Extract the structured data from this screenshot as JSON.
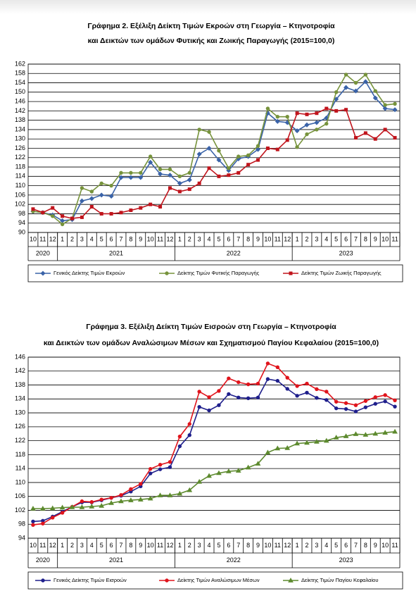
{
  "chart_data": [
    {
      "type": "line",
      "title": "Γράφημα 2. Εξέλιξη Δείκτη Τιμών Εκροών στη Γεωργία – Κτηνοτροφία",
      "subtitle": "και Δεικτών των ομάδων Φυτικής και Ζωικής Παραγωγής (2015=100,0)",
      "categories": [
        "10",
        "11",
        "12",
        "1",
        "2",
        "3",
        "4",
        "5",
        "6",
        "7",
        "8",
        "9",
        "10",
        "11",
        "12",
        "1",
        "2",
        "3",
        "4",
        "5",
        "6",
        "7",
        "8",
        "9",
        "10",
        "11",
        "12",
        "1",
        "2",
        "3",
        "4",
        "5",
        "6",
        "7",
        "8",
        "9",
        "10",
        "11"
      ],
      "groups": [
        "2020",
        "2021",
        "2022",
        "2023"
      ],
      "ylim": [
        90,
        162
      ],
      "yticks": [
        90,
        94,
        98,
        102,
        106,
        110,
        114,
        118,
        122,
        126,
        130,
        134,
        138,
        142,
        146,
        150,
        154,
        158,
        162
      ],
      "grid": true,
      "series": [
        {
          "name": "Γενικός Δείκτης Τιμών Εκροών",
          "color": "#3a63a8",
          "marker": "diamond",
          "values": [
            99,
            98.5,
            97.5,
            95,
            95.5,
            103.5,
            104.5,
            106,
            105.5,
            113.5,
            113.5,
            113.5,
            120,
            115,
            114.5,
            111,
            112.5,
            123.5,
            126,
            121,
            116.5,
            121.5,
            122.5,
            125.5,
            141,
            137.5,
            137,
            133.5,
            136,
            137,
            139,
            147,
            152,
            150.5,
            154.5,
            147.5,
            143,
            142.5
          ]
        },
        {
          "name": "Δείκτης Τιμών Φυτικής Παραγωγής",
          "color": "#77933c",
          "marker": "circle",
          "values": [
            99,
            98.5,
            97,
            93.5,
            96,
            109,
            107.5,
            111,
            110,
            115.5,
            115.5,
            115.5,
            122.5,
            117,
            117,
            114,
            115.5,
            134,
            133,
            125,
            117.5,
            122.5,
            123,
            127,
            143,
            139.5,
            139.5,
            126.5,
            132,
            134,
            136.5,
            150,
            157.5,
            154,
            157.5,
            150.5,
            144.5,
            145
          ]
        },
        {
          "name": "Δείκτης Τιμών Ζωικής Παραγωγής",
          "color": "#c0141c",
          "marker": "square",
          "values": [
            100,
            98.5,
            100.5,
            97,
            96,
            96.5,
            101,
            98,
            98,
            98.5,
            99.5,
            100.5,
            102,
            101,
            109,
            107.5,
            108.5,
            111,
            117.5,
            114,
            114.5,
            115.5,
            119,
            121,
            126,
            125.5,
            129.5,
            141,
            140.5,
            141,
            143,
            142,
            142.5,
            130.5,
            132.5,
            130,
            134,
            130.5
          ]
        }
      ]
    },
    {
      "type": "line",
      "title": "Γράφημα 3. Εξέλιξη Δείκτη Τιμών Εισροών στη Γεωργία – Κτηνοτροφία",
      "subtitle": "και Δεικτών των ομάδων Αναλώσιμων Μέσων και Σχηματισμού Παγίου Κεφαλαίου (2015=100,0)",
      "categories": [
        "10",
        "11",
        "12",
        "1",
        "2",
        "3",
        "4",
        "5",
        "6",
        "7",
        "8",
        "9",
        "10",
        "11",
        "12",
        "1",
        "2",
        "3",
        "4",
        "5",
        "6",
        "7",
        "8",
        "9",
        "10",
        "11",
        "12",
        "1",
        "2",
        "3",
        "4",
        "5",
        "6",
        "7",
        "8",
        "9",
        "10",
        "11"
      ],
      "groups": [
        "2020",
        "2021",
        "2022",
        "2023"
      ],
      "ylim": [
        94,
        146
      ],
      "yticks": [
        94,
        98,
        102,
        106,
        110,
        114,
        118,
        122,
        126,
        130,
        134,
        138,
        142,
        146
      ],
      "grid": true,
      "series": [
        {
          "name": "Γενικός Δείκτης Τιμών Εισροών",
          "color": "#1f1f8c",
          "marker": "circle",
          "values": [
            98.8,
            99,
            100.2,
            101.6,
            103,
            104.3,
            104.3,
            104.9,
            105.6,
            106.2,
            107.4,
            108.9,
            112.6,
            113.8,
            114.4,
            120.4,
            123.6,
            131.7,
            130.7,
            132.2,
            135.4,
            134.4,
            134.2,
            134.4,
            139.7,
            139.2,
            136.9,
            134.9,
            135.8,
            134.3,
            133.7,
            131.3,
            131.1,
            130.4,
            131.6,
            132.6,
            133.3,
            131.8
          ]
        },
        {
          "name": "Δείκτης Τιμών Αναλώσιμων Μέσων",
          "color": "#e0141c",
          "marker": "circle",
          "values": [
            97.8,
            98.2,
            99.9,
            101.3,
            103,
            104.6,
            104.4,
            105.1,
            105.6,
            106.4,
            108.1,
            109.6,
            113.9,
            115.1,
            115.9,
            123.2,
            126.8,
            136.1,
            134.5,
            136.3,
            139.9,
            138.8,
            138.2,
            138.4,
            144.2,
            143.1,
            140.1,
            137.7,
            138.4,
            136.8,
            136.1,
            133.2,
            132.8,
            132.2,
            133.4,
            134.5,
            135.1,
            133.6
          ]
        },
        {
          "name": "Δείκτης Τιμών Παγίου Κεφαλαίου",
          "color": "#5d8a2e",
          "marker": "triangle",
          "values": [
            102.5,
            102.5,
            102.6,
            102.8,
            102.9,
            102.9,
            103.1,
            103.3,
            104.1,
            104.6,
            104.9,
            105.1,
            105.4,
            106.3,
            106.3,
            106.8,
            107.8,
            110.2,
            111.9,
            112.7,
            113.2,
            113.4,
            114.3,
            115.4,
            118.6,
            119.8,
            119.9,
            121.2,
            121.4,
            121.7,
            122,
            122.9,
            123.3,
            123.9,
            123.7,
            124,
            124.3,
            124.6
          ]
        }
      ]
    }
  ]
}
